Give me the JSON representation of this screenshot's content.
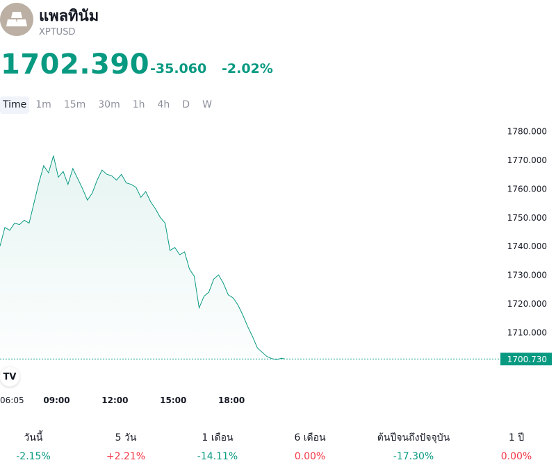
{
  "header": {
    "title": "แพลทินัม",
    "symbol": "XPTUSD",
    "logo_icon": "gold-bars-icon",
    "price": "1702.390",
    "change": "-35.060",
    "change_percent": "-2.02%",
    "price_color": "#089981"
  },
  "timeframes": [
    "Time",
    "1m",
    "15m",
    "30m",
    "1h",
    "4h",
    "D",
    "W"
  ],
  "active_timeframe": "Time",
  "watermark": "TV",
  "chart_data": {
    "type": "area",
    "title": "",
    "xlabel": "",
    "ylabel": "",
    "x_tick_labels": [
      "06:05",
      "09:00",
      "12:00",
      "15:00",
      "18:00"
    ],
    "y_tick_labels": [
      "1780.000",
      "1770.000",
      "1760.000",
      "1750.000",
      "1740.000",
      "1730.000",
      "1720.000",
      "1710.000"
    ],
    "ylim": [
      1700.3,
      1782.2
    ],
    "xlim": [
      "06:05",
      "20:45"
    ],
    "last_value_label": "1700.730",
    "line_color": "#089981",
    "series": [
      {
        "x": [
          "06:05",
          "06:20",
          "06:35",
          "06:50",
          "07:05",
          "07:20",
          "07:35",
          "07:50",
          "08:05",
          "08:20",
          "08:35",
          "08:50",
          "09:05",
          "09:20",
          "09:35",
          "09:50",
          "10:05",
          "10:20",
          "10:35",
          "10:50",
          "11:05",
          "11:20",
          "11:35",
          "11:50",
          "12:05",
          "12:20",
          "12:35",
          "12:50",
          "13:05",
          "13:20",
          "13:35",
          "13:50",
          "14:05",
          "14:20",
          "14:35",
          "14:50",
          "15:05",
          "15:20",
          "15:35",
          "15:50",
          "16:05",
          "16:20",
          "16:35",
          "16:50",
          "17:05",
          "17:20",
          "17:35",
          "17:50",
          "18:05",
          "18:20",
          "18:35",
          "18:50",
          "19:05",
          "19:20",
          "19:35",
          "19:50",
          "20:05",
          "20:20",
          "20:35",
          "20:45"
        ],
        "values": [
          1740.0,
          1746.5,
          1745.5,
          1748.0,
          1747.5,
          1749.0,
          1748.0,
          1755.0,
          1762.0,
          1768.0,
          1765.5,
          1771.5,
          1764.0,
          1766.0,
          1761.5,
          1767.0,
          1763.5,
          1760.0,
          1756.0,
          1758.5,
          1763.0,
          1766.5,
          1765.0,
          1764.5,
          1763.0,
          1765.0,
          1762.0,
          1761.5,
          1760.5,
          1757.0,
          1759.0,
          1755.5,
          1753.0,
          1750.0,
          1748.0,
          1738.5,
          1739.5,
          1737.0,
          1738.0,
          1732.0,
          1729.5,
          1718.5,
          1722.5,
          1724.0,
          1728.5,
          1730.0,
          1727.0,
          1723.0,
          1722.0,
          1719.5,
          1716.0,
          1712.0,
          1708.5,
          1704.5,
          1703.0,
          1701.5,
          1700.8,
          1700.5,
          1701.0,
          1700.7
        ]
      }
    ]
  },
  "performance": [
    {
      "label": "วันนี้",
      "value": "-2.15%",
      "color": "#089981"
    },
    {
      "label": "5 วัน",
      "value": "+2.21%",
      "color": "#f23645"
    },
    {
      "label": "1 เดือน",
      "value": "-14.11%",
      "color": "#089981"
    },
    {
      "label": "6 เดือน",
      "value": "0.00%",
      "color": "#f23645"
    },
    {
      "label": "ต้นปีจนถึงปัจจุบัน",
      "value": "-17.30%",
      "color": "#089981"
    },
    {
      "label": "1 ปี",
      "value": "0.00%",
      "color": "#f23645"
    }
  ]
}
